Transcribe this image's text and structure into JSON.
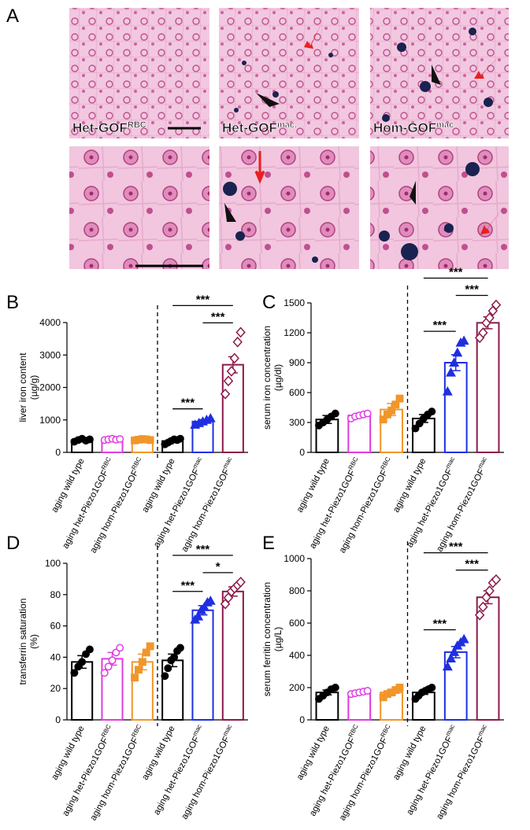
{
  "figure": {
    "panel": "A",
    "micrograph_labels": [
      {
        "text": "Het-GOF",
        "sup": "RBC"
      },
      {
        "text": "Het-GOF",
        "sup": "mac."
      },
      {
        "text": "Hom-GOF",
        "sup": "mac"
      }
    ]
  },
  "chart_data": [
    {
      "type": "bar",
      "panel": "B",
      "ylabel": [
        "liver iron content",
        "(µg/g)"
      ],
      "categories": [
        "aging wild type",
        "aging het-Piezo1GOF",
        "aging hom-Piezo1GOF",
        "aging wild type",
        "aging het-Piezo1GOF",
        "aging hom-Piezo1GOF"
      ],
      "category_superscripts": [
        null,
        "RBC",
        "RBC",
        null,
        "mac",
        "mac"
      ],
      "values": [
        380,
        400,
        390,
        350,
        950,
        2700
      ],
      "errors": [
        30,
        20,
        20,
        40,
        60,
        250
      ],
      "points": [
        [
          330,
          380,
          420,
          360,
          400
        ],
        [
          380,
          400,
          420,
          390,
          410
        ],
        [
          370,
          390,
          410,
          400,
          380
        ],
        [
          250,
          300,
          350,
          400,
          380,
          420
        ],
        [
          850,
          900,
          950,
          1000,
          1050
        ],
        [
          1800,
          2200,
          2500,
          2900,
          3400,
          3700
        ]
      ],
      "colors": [
        "#000000",
        "#e03ce0",
        "#f0962a",
        "#000000",
        "#1f2fe0",
        "#8b1a4a"
      ],
      "markers": [
        "circle-filled",
        "circle-open",
        "square-filled",
        "circle-filled",
        "triangle-filled",
        "diamond-open"
      ],
      "ylim": [
        0,
        4000
      ],
      "yticks": [
        0,
        1000,
        2000,
        3000,
        4000
      ],
      "significance": [
        {
          "from": 3,
          "to": 4,
          "label": "***"
        },
        {
          "from": 4,
          "to": 5,
          "label": "***"
        },
        {
          "from": 3,
          "to": 5,
          "label": "***"
        }
      ]
    },
    {
      "type": "bar",
      "panel": "C",
      "ylabel": [
        "serum iron concentration",
        "(µg/dl)"
      ],
      "categories": [
        "aging wild type",
        "aging het-Piezo1GOF",
        "aging hom-Piezo1GOF",
        "aging wild type",
        "aging het-Piezo1GOF",
        "aging hom-Piezo1GOF"
      ],
      "category_superscripts": [
        null,
        "RBC",
        "RBC",
        null,
        "mac",
        "mac"
      ],
      "values": [
        330,
        370,
        430,
        340,
        900,
        1300
      ],
      "errors": [
        40,
        20,
        60,
        40,
        80,
        60
      ],
      "points": [
        [
          270,
          300,
          330,
          360,
          390
        ],
        [
          340,
          360,
          370,
          380,
          390
        ],
        [
          330,
          380,
          420,
          480,
          540
        ],
        [
          240,
          290,
          340,
          380,
          410
        ],
        [
          610,
          800,
          900,
          1000,
          1100,
          1120
        ],
        [
          1150,
          1200,
          1300,
          1350,
          1420,
          1480
        ]
      ],
      "colors": [
        "#000000",
        "#e03ce0",
        "#f0962a",
        "#000000",
        "#1f2fe0",
        "#8b1a4a"
      ],
      "markers": [
        "circle-filled",
        "circle-open",
        "square-filled",
        "circle-filled",
        "triangle-filled",
        "diamond-open"
      ],
      "ylim": [
        0,
        1500
      ],
      "yticks": [
        0,
        300,
        600,
        900,
        1200,
        1500
      ],
      "significance": [
        {
          "from": 3,
          "to": 4,
          "label": "***"
        },
        {
          "from": 4,
          "to": 5,
          "label": "***"
        },
        {
          "from": 3,
          "to": 5,
          "label": "***"
        }
      ]
    },
    {
      "type": "bar",
      "panel": "D",
      "ylabel": [
        "transferrin saturation",
        "(%)"
      ],
      "categories": [
        "aging wild type",
        "aging het-Piezo1GOF",
        "aging hom-Piezo1GOF",
        "aging wild type",
        "aging het-Piezo1GOF",
        "aging hom-Piezo1GOF"
      ],
      "category_superscripts": [
        null,
        "RBC",
        "RBC",
        null,
        "mac",
        "mac"
      ],
      "values": [
        37,
        39,
        37,
        38,
        70,
        82
      ],
      "errors": [
        4,
        4,
        5,
        4,
        3,
        3
      ],
      "points": [
        [
          30,
          34,
          37,
          42,
          45
        ],
        [
          30,
          34,
          38,
          43,
          46
        ],
        [
          27,
          32,
          37,
          43,
          47
        ],
        [
          28,
          33,
          38,
          40,
          44,
          46
        ],
        [
          64,
          66,
          70,
          72,
          75,
          76
        ],
        [
          74,
          78,
          82,
          84,
          86,
          88
        ]
      ],
      "colors": [
        "#000000",
        "#e03ce0",
        "#f0962a",
        "#000000",
        "#1f2fe0",
        "#8b1a4a"
      ],
      "markers": [
        "circle-filled",
        "circle-open",
        "square-filled",
        "circle-filled",
        "triangle-filled",
        "diamond-open"
      ],
      "ylim": [
        0,
        100
      ],
      "yticks": [
        0,
        20,
        40,
        60,
        80,
        100
      ],
      "significance": [
        {
          "from": 3,
          "to": 4,
          "label": "***"
        },
        {
          "from": 4,
          "to": 5,
          "label": "*"
        },
        {
          "from": 3,
          "to": 5,
          "label": "***"
        }
      ]
    },
    {
      "type": "bar",
      "panel": "E",
      "ylabel": [
        "serum ferritin concentration",
        "(µg/L)"
      ],
      "categories": [
        "aging wild type",
        "aging het-Piezo1GOF",
        "aging hom-Piezo1GOF",
        "aging wild type",
        "aging het-Piezo1GOF",
        "aging hom-Piezo1GOF"
      ],
      "category_superscripts": [
        null,
        "RBC",
        "RBC",
        null,
        "mac",
        "mac"
      ],
      "values": [
        170,
        170,
        170,
        170,
        420,
        760
      ],
      "errors": [
        15,
        8,
        15,
        12,
        35,
        40
      ],
      "points": [
        [
          130,
          150,
          170,
          190,
          200
        ],
        [
          160,
          165,
          170,
          175,
          180
        ],
        [
          140,
          160,
          170,
          185,
          200
        ],
        [
          130,
          150,
          170,
          180,
          190,
          200
        ],
        [
          330,
          380,
          420,
          460,
          480,
          500
        ],
        [
          650,
          700,
          760,
          800,
          850,
          870
        ]
      ],
      "colors": [
        "#000000",
        "#e03ce0",
        "#f0962a",
        "#000000",
        "#1f2fe0",
        "#8b1a4a"
      ],
      "markers": [
        "circle-filled",
        "circle-open",
        "square-filled",
        "circle-filled",
        "triangle-filled",
        "diamond-open"
      ],
      "ylim": [
        0,
        1000
      ],
      "yticks": [
        0,
        200,
        400,
        600,
        800,
        1000
      ],
      "significance": [
        {
          "from": 3,
          "to": 4,
          "label": "***"
        },
        {
          "from": 4,
          "to": 5,
          "label": "***"
        },
        {
          "from": 3,
          "to": 5,
          "label": "***"
        }
      ]
    }
  ]
}
